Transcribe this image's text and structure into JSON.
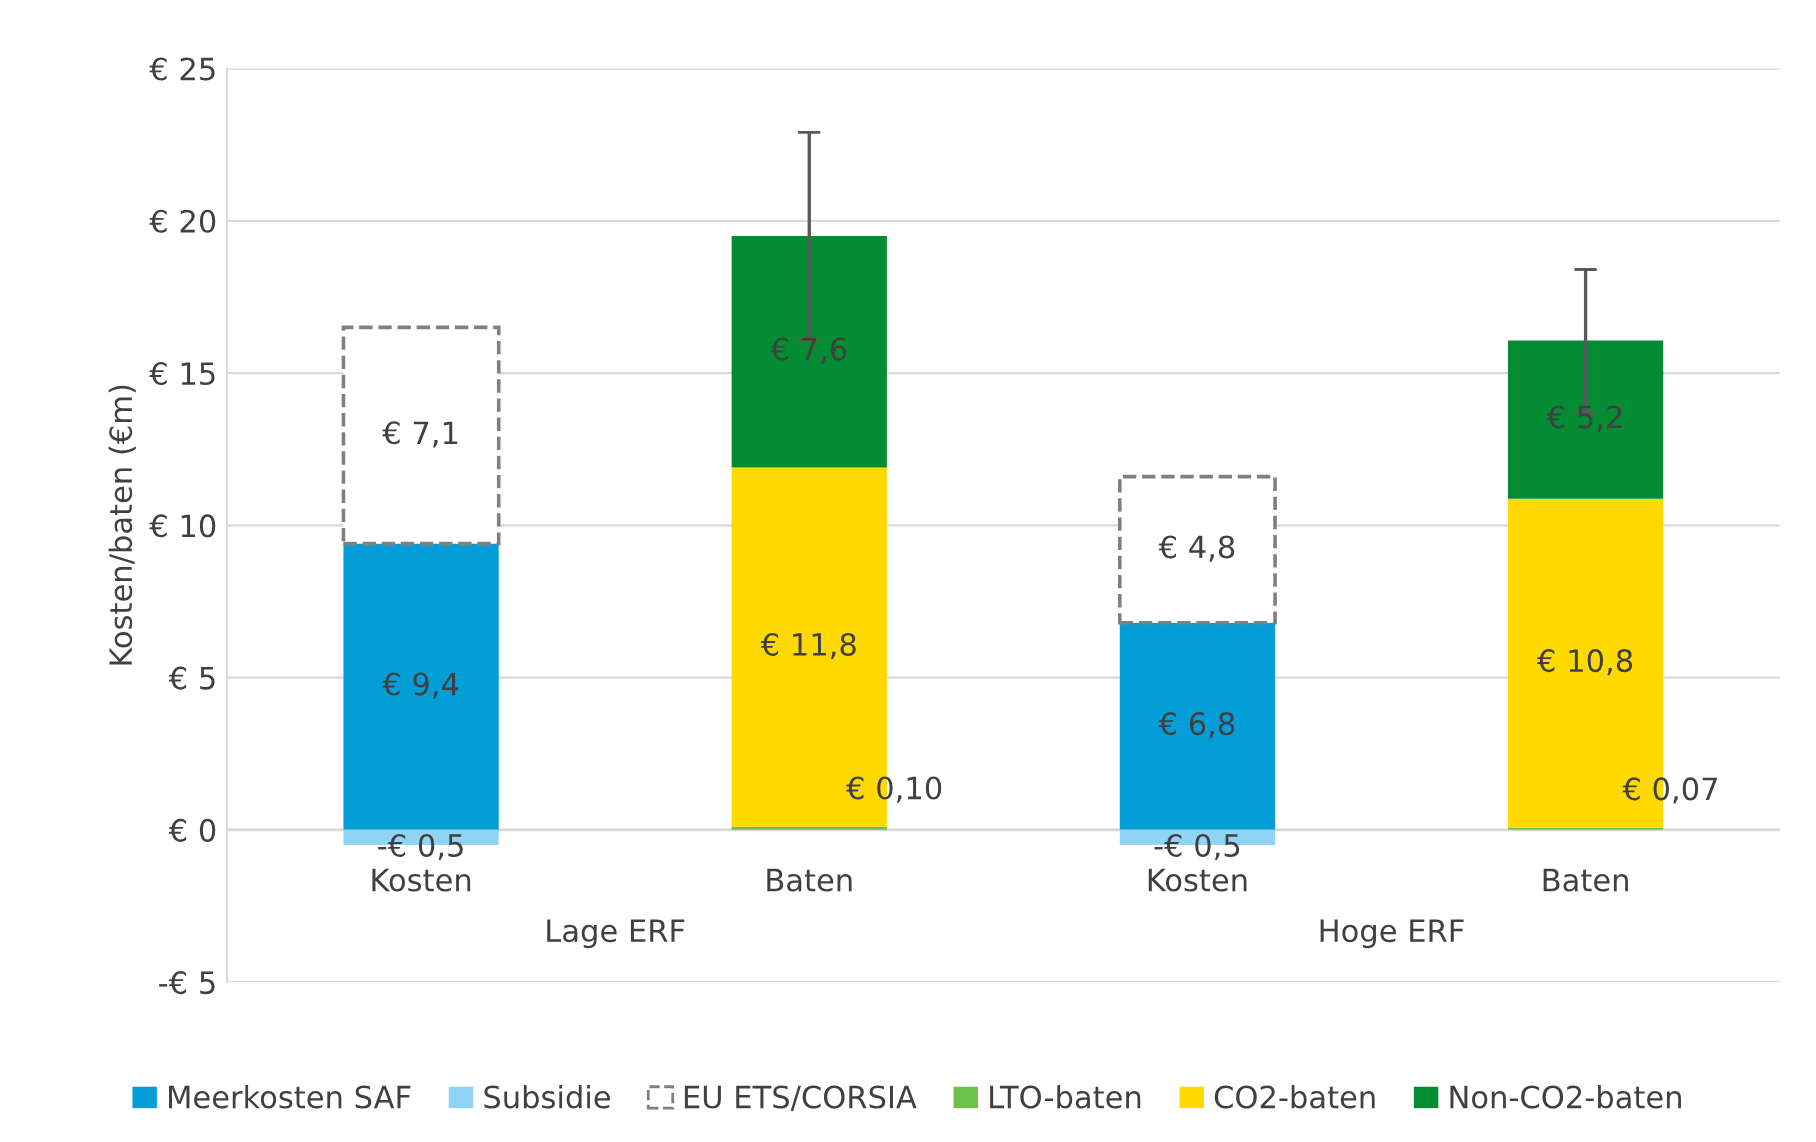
{
  "chart_data": {
    "type": "bar",
    "stacked": true,
    "categories": [
      "Kosten",
      "Baten",
      "Kosten",
      "Baten"
    ],
    "ylabel": "Kosten/baten (€m)",
    "ylim": [
      -5,
      25
    ],
    "yticks": [
      {
        "value": -5,
        "label": "-€ 5"
      },
      {
        "value": 0,
        "label": "€ 0"
      },
      {
        "value": 5,
        "label": "€ 5"
      },
      {
        "value": 10,
        "label": "€ 10"
      },
      {
        "value": 15,
        "label": "€ 15"
      },
      {
        "value": 20,
        "label": "€ 20"
      },
      {
        "value": 25,
        "label": "€ 25"
      }
    ],
    "grid": "y",
    "legend": "bottom",
    "annotations": [
      "Lage ERF",
      "Hoge ERF"
    ],
    "series": [
      {
        "name": "Meerkosten SAF",
        "color": "#039ed8",
        "values": [
          9.4,
          null,
          6.8,
          null
        ],
        "value_labels": [
          "€ 9,4",
          null,
          "€ 6,8",
          null
        ]
      },
      {
        "name": "Subsidie",
        "color": "#8fd3f5",
        "values": [
          -0.5,
          null,
          -0.5,
          null
        ],
        "value_labels": [
          "-€ 0,5",
          null,
          "-€ 0,5",
          null
        ]
      },
      {
        "name": "EU ETS/CORSIA",
        "color": "#808080",
        "line_style": "dashed",
        "values": [
          7.1,
          null,
          4.8,
          null
        ],
        "value_labels": [
          "€ 7,1",
          null,
          "€ 4,8",
          null
        ]
      },
      {
        "name": "LTO-baten",
        "color": "#6cc24a",
        "values": [
          null,
          0.1,
          null,
          0.07
        ],
        "value_labels": [
          null,
          "€ 0,10",
          null,
          "€ 0,07"
        ]
      },
      {
        "name": "CO2-baten",
        "color": "#ffd900",
        "values": [
          null,
          11.8,
          null,
          10.8
        ],
        "value_labels": [
          null,
          "€ 11,8",
          null,
          "€ 10,8"
        ]
      },
      {
        "name": "Non-CO2-baten",
        "color": "#038c33",
        "values": [
          null,
          7.6,
          null,
          5.2
        ],
        "value_labels": [
          null,
          "€ 7,6",
          null,
          "€ 5,2"
        ],
        "errors": [
          null,
          [
            16.1,
            22.9
          ],
          null,
          [
            13.7,
            18.4
          ]
        ]
      }
    ]
  }
}
